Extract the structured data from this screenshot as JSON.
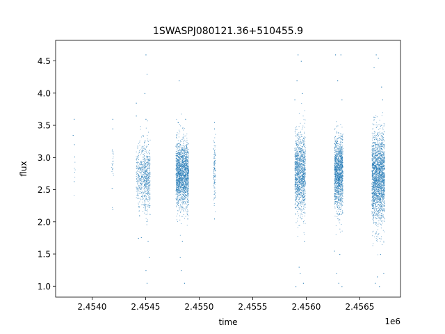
{
  "chart_data": {
    "type": "scatter",
    "title": "1SWASPJ080121.36+510455.9",
    "xlabel": "time",
    "ylabel": "flux",
    "x_offset_label": "1e6",
    "xlim": [
      2.45366,
      2.45688
    ],
    "ylim": [
      0.83,
      4.82
    ],
    "x_ticks": [
      2.454,
      2.4545,
      2.455,
      2.4555,
      2.456,
      2.4565
    ],
    "x_tick_labels": [
      "2.4540",
      "2.4545",
      "2.4550",
      "2.4555",
      "2.4560",
      "2.4565"
    ],
    "y_ticks": [
      1.0,
      1.5,
      2.0,
      2.5,
      3.0,
      3.5,
      4.0,
      4.5
    ],
    "y_tick_labels": [
      "1.0",
      "1.5",
      "2.0",
      "2.5",
      "3.0",
      "3.5",
      "4.0",
      "4.5"
    ],
    "grid": false,
    "marker_color": "#1f77b4",
    "series": [
      {
        "x_range": [
          2.45383,
          2.45384
        ],
        "y_center": 2.95,
        "y_spread": 0.35,
        "n": 10,
        "outliers": [
          [
            2.45383,
            3.6
          ],
          [
            2.45383,
            2.63
          ],
          [
            2.45382,
            3.35
          ]
        ]
      },
      {
        "x_range": [
          2.45418,
          2.4542
        ],
        "y_center": 2.9,
        "y_spread": 0.4,
        "n": 25,
        "outliers": [
          [
            2.45419,
            3.6
          ],
          [
            2.45419,
            2.2
          ],
          [
            2.45419,
            3.45
          ]
        ]
      },
      {
        "x_range": [
          2.45441,
          2.45448
        ],
        "y_center": 2.75,
        "y_spread": 0.45,
        "n": 300,
        "outliers": [
          [
            2.45441,
            3.85
          ],
          [
            2.45441,
            3.65
          ],
          [
            2.45443,
            1.75
          ],
          [
            2.45444,
            2.1
          ],
          [
            2.45446,
            2.4
          ]
        ]
      },
      {
        "x_range": [
          2.45448,
          2.45454
        ],
        "y_center": 2.7,
        "y_spread": 0.5,
        "n": 450,
        "outliers": [
          [
            2.4545,
            4.6
          ],
          [
            2.45451,
            1.05
          ],
          [
            2.4545,
            1.25
          ],
          [
            2.45449,
            4.0
          ],
          [
            2.45452,
            1.7
          ],
          [
            2.45451,
            4.3
          ],
          [
            2.45453,
            1.45
          ],
          [
            2.4545,
            3.6
          ]
        ]
      },
      {
        "x_range": [
          2.45478,
          2.4549
        ],
        "y_center": 2.75,
        "y_spread": 0.45,
        "n": 1800,
        "outliers": [
          [
            2.45481,
            4.2
          ],
          [
            2.45483,
            1.25
          ],
          [
            2.45486,
            1.05
          ],
          [
            2.4548,
            3.55
          ],
          [
            2.45487,
            3.6
          ],
          [
            2.45484,
            1.7
          ],
          [
            2.45489,
            2.05
          ],
          [
            2.45482,
            1.45
          ]
        ]
      },
      {
        "x_range": [
          2.45513,
          2.45515
        ],
        "y_center": 2.8,
        "y_spread": 0.4,
        "n": 120,
        "outliers": [
          [
            2.45514,
            3.55
          ],
          [
            2.45514,
            2.05
          ],
          [
            2.45514,
            3.45
          ]
        ]
      },
      {
        "x_range": [
          2.45589,
          2.45599
        ],
        "y_center": 2.75,
        "y_spread": 0.55,
        "n": 1300,
        "outliers": [
          [
            2.45592,
            4.6
          ],
          [
            2.45595,
            4.5
          ],
          [
            2.4559,
            1.0
          ],
          [
            2.45597,
            1.05
          ],
          [
            2.45594,
            1.2
          ],
          [
            2.45596,
            4.0
          ],
          [
            2.45589,
            3.9
          ],
          [
            2.45598,
            1.7
          ],
          [
            2.45593,
            1.3
          ],
          [
            2.45591,
            4.2
          ]
        ]
      },
      {
        "x_range": [
          2.45626,
          2.45634
        ],
        "y_center": 2.75,
        "y_spread": 0.5,
        "n": 1400,
        "outliers": [
          [
            2.45627,
            4.6
          ],
          [
            2.45632,
            4.6
          ],
          [
            2.4563,
            1.05
          ],
          [
            2.45633,
            1.0
          ],
          [
            2.45629,
            4.2
          ],
          [
            2.45631,
            1.5
          ],
          [
            2.45628,
            1.2
          ],
          [
            2.45633,
            3.9
          ],
          [
            2.45626,
            1.55
          ]
        ]
      },
      {
        "x_range": [
          2.45661,
          2.45673
        ],
        "y_center": 2.7,
        "y_spread": 0.62,
        "n": 2100,
        "outliers": [
          [
            2.45665,
            4.6
          ],
          [
            2.45667,
            4.55
          ],
          [
            2.45668,
            1.0
          ],
          [
            2.45664,
            1.05
          ],
          [
            2.4567,
            4.1
          ],
          [
            2.45672,
            1.2
          ],
          [
            2.45666,
            1.15
          ],
          [
            2.45663,
            4.4
          ],
          [
            2.45669,
            1.5
          ],
          [
            2.45671,
            3.9
          ]
        ]
      }
    ]
  }
}
